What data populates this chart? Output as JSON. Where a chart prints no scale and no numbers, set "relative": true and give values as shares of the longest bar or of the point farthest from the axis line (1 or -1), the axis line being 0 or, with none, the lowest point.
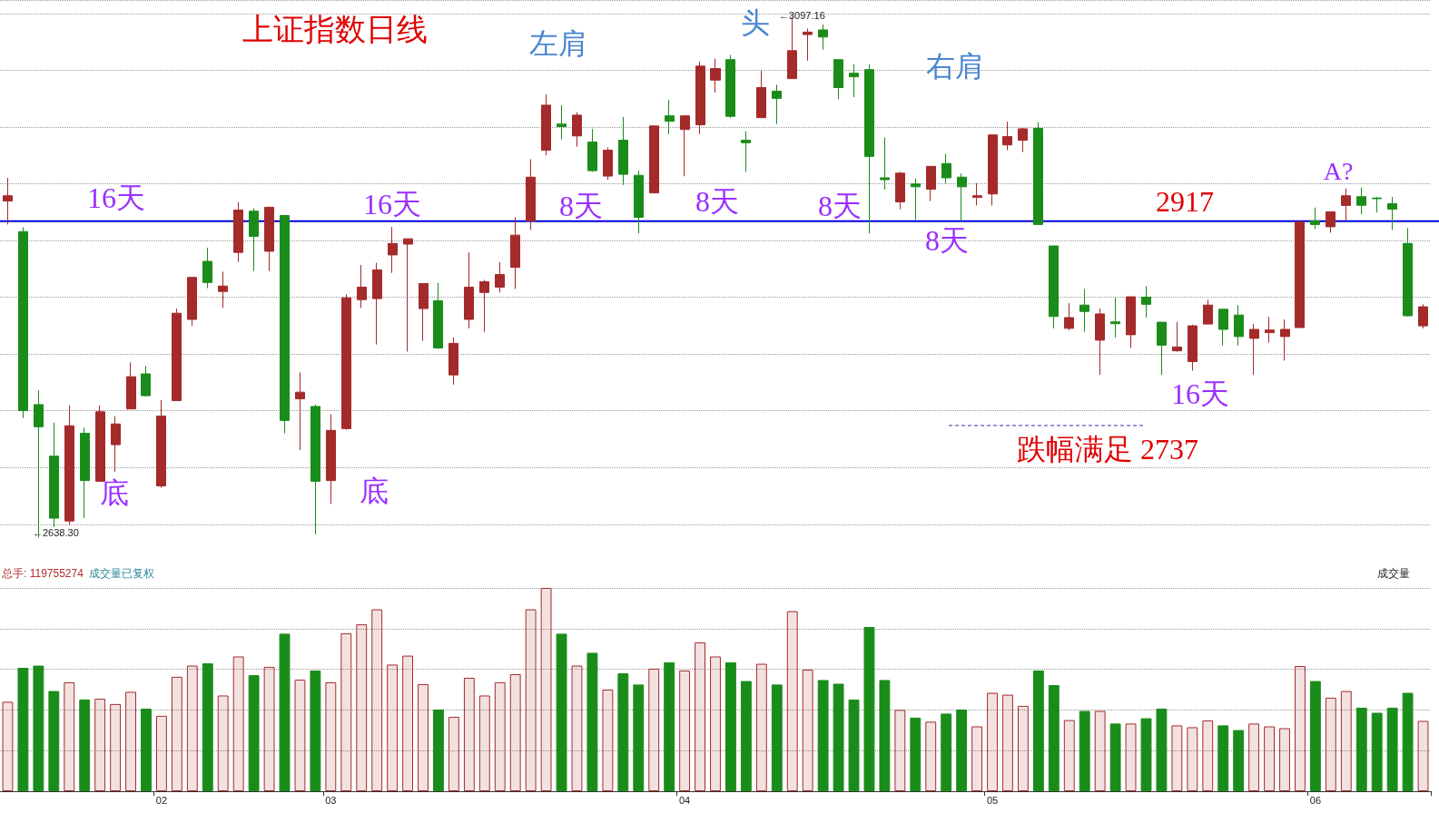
{
  "chart_data": [
    {
      "type": "candlestick",
      "title": "上证指数日线",
      "categories": [
        null,
        null,
        null,
        null,
        null,
        null,
        null,
        null,
        null,
        null,
        "02",
        null,
        null,
        null,
        null,
        null,
        null,
        null,
        null,
        null,
        null,
        "03",
        null,
        null,
        null,
        null,
        null,
        null,
        null,
        null,
        null,
        null,
        null,
        null,
        null,
        null,
        null,
        null,
        null,
        null,
        null,
        null,
        null,
        null,
        "04",
        null,
        null,
        null,
        null,
        null,
        null,
        null,
        null,
        null,
        null,
        null,
        null,
        null,
        null,
        null,
        null,
        null,
        null,
        null,
        "05",
        null,
        null,
        null,
        null,
        null,
        null,
        null,
        null,
        null,
        null,
        null,
        null,
        null,
        null,
        null,
        null,
        null,
        null,
        null,
        null,
        "06",
        null,
        null,
        null,
        null,
        null,
        null,
        null
      ],
      "ohlc": [
        [
          2934.7,
          2955.2,
          2914.1,
          2939.4
        ],
        [
          2907.8,
          2911.6,
          2743.7,
          2750.1
        ],
        [
          2755.4,
          2768.0,
          2638.3,
          2735.9
        ],
        [
          2710.0,
          2739.6,
          2647.5,
          2655.4
        ],
        [
          2652.9,
          2754.8,
          2649.1,
          2736.8
        ],
        [
          2730.2,
          2735.2,
          2655.4,
          2688.5
        ],
        [
          2687.9,
          2754.8,
          2687.9,
          2749.1
        ],
        [
          2720.1,
          2745.3,
          2696.4,
          2738.4
        ],
        [
          2751.6,
          2792.6,
          2751.6,
          2780.0
        ],
        [
          2782.5,
          2789.5,
          2762.7,
          2763.3
        ],
        [
          2683.8,
          2759.5,
          2682.2,
          2745.3
        ],
        [
          2758.9,
          2840.0,
          2758.9,
          2835.9
        ],
        [
          2830.5,
          2867.5,
          2824.8,
          2867.5
        ],
        [
          2881.6,
          2893.6,
          2858.0,
          2863.0
        ],
        [
          2855.1,
          2872.5,
          2840.6,
          2859.9
        ],
        [
          2889.5,
          2933.7,
          2881.0,
          2926.8
        ],
        [
          2925.8,
          2928.3,
          2873.1,
          2903.7
        ],
        [
          2890.5,
          2929.9,
          2873.1,
          2929.3
        ],
        [
          2922.0,
          2922.0,
          2730.2,
          2741.5
        ],
        [
          2760.5,
          2783.8,
          2715.3,
          2766.4
        ],
        [
          2753.8,
          2755.4,
          2641.0,
          2687.9
        ],
        [
          2688.5,
          2746.9,
          2668.0,
          2732.7
        ],
        [
          2734.3,
          2852.6,
          2733.3,
          2849.5
        ],
        [
          2847.9,
          2878.5,
          2840.6,
          2858.9
        ],
        [
          2848.8,
          2880.4,
          2808.4,
          2874.1
        ],
        [
          2887.3,
          2911.9,
          2871.5,
          2897.4
        ],
        [
          2896.8,
          2901.5,
          2802.1,
          2901.5
        ],
        [
          2840.0,
          2862.1,
          2811.6,
          2862.1
        ],
        [
          2846.9,
          2862.7,
          2804.6,
          2805.3
        ],
        [
          2781.6,
          2814.7,
          2773.1,
          2809.4
        ],
        [
          2830.5,
          2889.5,
          2822.6,
          2858.9
        ],
        [
          2854.2,
          2865.3,
          2819.5,
          2863.7
        ],
        [
          2858.9,
          2881.0,
          2854.2,
          2870.0
        ],
        [
          2876.3,
          2920.5,
          2857.3,
          2904.7
        ],
        [
          2917.3,
          2971.6,
          2909.4,
          2955.8
        ],
        [
          2979.5,
          3028.7,
          2975.0,
          3019.2
        ],
        [
          3002.5,
          3019.2,
          2988.9,
          3000.3
        ],
        [
          2992.1,
          3012.9,
          2982.6,
          3010.4
        ],
        [
          2986.7,
          2998.4,
          2960.5,
          2961.5
        ],
        [
          2956.7,
          2982.0,
          2953.6,
          2979.5
        ],
        [
          2988.3,
          3008.8,
          2948.9,
          2958.3
        ],
        [
          2957.4,
          2961.5,
          2906.2,
          2920.4
        ],
        [
          2941.9,
          3000.9,
          2941.9,
          3000.9
        ],
        [
          3009.8,
          3023.9,
          2993.7,
          3005.0
        ],
        [
          2997.8,
          3009.8,
          2956.7,
          3009.8
        ],
        [
          3001.9,
          3057.7,
          2993.7,
          3053.6
        ],
        [
          3041.3,
          3060.2,
          3030.3,
          3051.4
        ],
        [
          3059.3,
          3063.4,
          3007.9,
          3009.4
        ],
        [
          2988.3,
          2996.2,
          2960.5,
          2986.1
        ],
        [
          3008.2,
          3049.8,
          3008.2,
          3034.7
        ],
        [
          3031.5,
          3037.2,
          3002.5,
          3025.2
        ],
        [
          3042.6,
          3097.16,
          3042.6,
          3067.2
        ],
        [
          3081.4,
          3086.7,
          3058.4,
          3083.6
        ],
        [
          3085.5,
          3090.2,
          3068.1,
          3079.2
        ],
        [
          3059.3,
          3059.3,
          3024.6,
          3034.7
        ],
        [
          3047.3,
          3055.2,
          3026.2,
          3044.2
        ],
        [
          3050.5,
          3055.2,
          2906.2,
          2974.1
        ],
        [
          2955.2,
          2990.8,
          2944.8,
          2953.6
        ],
        [
          2934.0,
          2960.5,
          2927.4,
          2959.3
        ],
        [
          2949.8,
          2954.5,
          2918.2,
          2947.3
        ],
        [
          2945.1,
          2965.3,
          2934.7,
          2965.3
        ],
        [
          2967.8,
          2976.3,
          2950.4,
          2955.2
        ],
        [
          2955.8,
          2959.0,
          2917.3,
          2947.3
        ],
        [
          2937.9,
          2950.4,
          2930.9,
          2939.4
        ],
        [
          2941.0,
          2993.0,
          2930.9,
          2993.0
        ],
        [
          2984.2,
          3004.7,
          2979.5,
          2991.5
        ],
        [
          2988.3,
          2999.3,
          2977.9,
          2998.4
        ],
        [
          2998.7,
          3004.1,
          2914.1,
          2914.1
        ],
        [
          2895.2,
          2895.2,
          2822.6,
          2833.0
        ],
        [
          2822.6,
          2844.7,
          2821.0,
          2832.1
        ],
        [
          2843.1,
          2857.3,
          2819.5,
          2837.5
        ],
        [
          2812.2,
          2840.0,
          2781.6,
          2835.3
        ],
        [
          2828.3,
          2849.5,
          2814.7,
          2826.7
        ],
        [
          2817.0,
          2850.4,
          2805.3,
          2850.4
        ],
        [
          2850.1,
          2859.9,
          2832.1,
          2843.8
        ],
        [
          2828.0,
          2828.0,
          2781.6,
          2807.8
        ],
        [
          2802.8,
          2828.3,
          2802.1,
          2806.2
        ],
        [
          2793.3,
          2825.8,
          2785.4,
          2824.8
        ],
        [
          2826.4,
          2847.9,
          2826.4,
          2843.1
        ],
        [
          2839.4,
          2839.4,
          2807.5,
          2821.7
        ],
        [
          2834.3,
          2843.1,
          2807.5,
          2815.4
        ],
        [
          2813.8,
          2826.4,
          2781.6,
          2821.7
        ],
        [
          2818.8,
          2832.7,
          2810.0,
          2821.1
        ],
        [
          2815.4,
          2830.5,
          2794.2,
          2821.7
        ],
        [
          2823.3,
          2917.3,
          2823.3,
          2916.3
        ],
        [
          2917.3,
          2929.0,
          2910.0,
          2914.1
        ],
        [
          2912.1,
          2925.2,
          2906.9,
          2925.2
        ],
        [
          2930.9,
          2945.7,
          2917.3,
          2939.4
        ],
        [
          2938.6,
          2946.6,
          2923.0,
          2931.0
        ],
        [
          2937.4,
          2938.4,
          2924.6,
          2936.8
        ],
        [
          2932.4,
          2938.4,
          2909.4,
          2927.7
        ],
        [
          2897.4,
          2911.0,
          2833.0,
          2833.7
        ],
        [
          2824.8,
          2843.8,
          2822.6,
          2841.6
        ]
      ],
      "colors": [
        "#a52a2a",
        "#1a8c1a",
        "#1a8c1a",
        "#1a8c1a",
        "#a52a2a",
        "#1a8c1a",
        "#a52a2a",
        "#a52a2a",
        "#a52a2a",
        "#1a8c1a",
        "#a52a2a",
        "#a52a2a",
        "#a52a2a",
        "#1a8c1a",
        "#a52a2a",
        "#a52a2a",
        "#1a8c1a",
        "#a52a2a",
        "#1a8c1a",
        "#a52a2a",
        "#1a8c1a",
        "#a52a2a",
        "#a52a2a",
        "#a52a2a",
        "#a52a2a",
        "#a52a2a",
        "#a52a2a",
        "#a52a2a",
        "#1a8c1a",
        "#a52a2a",
        "#a52a2a",
        "#a52a2a",
        "#a52a2a",
        "#a52a2a",
        "#a52a2a",
        "#a52a2a",
        "#1a8c1a",
        "#a52a2a",
        "#1a8c1a",
        "#a52a2a",
        "#1a8c1a",
        "#1a8c1a",
        "#a52a2a",
        "#1a8c1a",
        "#a52a2a",
        "#a52a2a",
        "#a52a2a",
        "#1a8c1a",
        "#1a8c1a",
        "#a52a2a",
        "#1a8c1a",
        "#a52a2a",
        "#a52a2a",
        "#1a8c1a",
        "#1a8c1a",
        "#1a8c1a",
        "#1a8c1a",
        "#1a8c1a",
        "#a52a2a",
        "#1a8c1a",
        "#a52a2a",
        "#1a8c1a",
        "#1a8c1a",
        "#a52a2a",
        "#a52a2a",
        "#a52a2a",
        "#a52a2a",
        "#1a8c1a",
        "#1a8c1a",
        "#a52a2a",
        "#1a8c1a",
        "#a52a2a",
        "#1a8c1a",
        "#a52a2a",
        "#1a8c1a",
        "#1a8c1a",
        "#a52a2a",
        "#a52a2a",
        "#a52a2a",
        "#1a8c1a",
        "#1a8c1a",
        "#a52a2a",
        "#a52a2a",
        "#a52a2a",
        "#a52a2a",
        "#1a8c1a",
        "#a52a2a",
        "#a52a2a",
        "#1a8c1a",
        "#1a8c1a",
        "#1a8c1a",
        "#1a8c1a",
        "#a52a2a"
      ],
      "grid": "y",
      "tick_labels": false,
      "ref_lines": [
        {
          "axis": "y",
          "value": 2917,
          "label": "2917",
          "color": "#0000dd",
          "line_style": "solid"
        },
        {
          "axis": "y",
          "value": 2737,
          "label": "跌幅满足 2737",
          "color": "#3333aa",
          "line_style": "dashed"
        }
      ],
      "annotations": [
        "左肩",
        "头",
        "右肩",
        "16天",
        "16天",
        "8天",
        "8天",
        "8天",
        "8天",
        "底",
        "底",
        "16天",
        "A?",
        "←3097.16",
        "←2638.30"
      ]
    },
    {
      "type": "bar",
      "relative": true,
      "categories": [
        null,
        null,
        null,
        null,
        null,
        null,
        null,
        null,
        null,
        null,
        "02",
        null,
        null,
        null,
        null,
        null,
        null,
        null,
        null,
        null,
        null,
        "03",
        null,
        null,
        null,
        null,
        null,
        null,
        null,
        null,
        null,
        null,
        null,
        null,
        null,
        null,
        null,
        null,
        null,
        null,
        null,
        null,
        null,
        null,
        "04",
        null,
        null,
        null,
        null,
        null,
        null,
        null,
        null,
        null,
        null,
        null,
        null,
        null,
        null,
        null,
        null,
        null,
        null,
        null,
        "05",
        null,
        null,
        null,
        null,
        null,
        null,
        null,
        null,
        null,
        null,
        null,
        null,
        null,
        null,
        null,
        null,
        null,
        null,
        null,
        null,
        "06",
        null,
        null,
        null,
        null,
        null,
        null,
        null
      ],
      "values": [
        0.44,
        0.607,
        0.618,
        0.493,
        0.536,
        0.451,
        0.455,
        0.429,
        0.489,
        0.406,
        0.371,
        0.563,
        0.618,
        0.629,
        0.471,
        0.663,
        0.571,
        0.612,
        0.775,
        0.549,
        0.594,
        0.536,
        0.777,
        0.821,
        0.895,
        0.623,
        0.667,
        0.527,
        0.402,
        0.366,
        0.558,
        0.471,
        0.536,
        0.576,
        0.895,
        1,
        0.775,
        0.618,
        0.681,
        0.5,
        0.58,
        0.525,
        0.603,
        0.634,
        0.594,
        0.732,
        0.663,
        0.634,
        0.542,
        0.627,
        0.525,
        0.886,
        0.598,
        0.547,
        0.529,
        0.451,
        0.808,
        0.547,
        0.4,
        0.362,
        0.342,
        0.382,
        0.402,
        0.319,
        0.484,
        0.475,
        0.42,
        0.594,
        0.522,
        0.35,
        0.395,
        0.395,
        0.333,
        0.333,
        0.359,
        0.406,
        0.324,
        0.315,
        0.348,
        0.324,
        0.301,
        0.333,
        0.319,
        0.31,
        0.616,
        0.542,
        0.46,
        0.493,
        0.411,
        0.386,
        0.411,
        0.484,
        0.346
      ],
      "colors": [
        "#a52a2a",
        "#1a8c1a",
        "#1a8c1a",
        "#1a8c1a",
        "#a52a2a",
        "#1a8c1a",
        "#a52a2a",
        "#a52a2a",
        "#a52a2a",
        "#1a8c1a",
        "#a52a2a",
        "#a52a2a",
        "#a52a2a",
        "#1a8c1a",
        "#a52a2a",
        "#a52a2a",
        "#1a8c1a",
        "#a52a2a",
        "#1a8c1a",
        "#a52a2a",
        "#1a8c1a",
        "#a52a2a",
        "#a52a2a",
        "#a52a2a",
        "#a52a2a",
        "#a52a2a",
        "#a52a2a",
        "#a52a2a",
        "#1a8c1a",
        "#a52a2a",
        "#a52a2a",
        "#a52a2a",
        "#a52a2a",
        "#a52a2a",
        "#a52a2a",
        "#a52a2a",
        "#1a8c1a",
        "#a52a2a",
        "#1a8c1a",
        "#a52a2a",
        "#1a8c1a",
        "#1a8c1a",
        "#a52a2a",
        "#1a8c1a",
        "#a52a2a",
        "#a52a2a",
        "#a52a2a",
        "#1a8c1a",
        "#1a8c1a",
        "#a52a2a",
        "#1a8c1a",
        "#a52a2a",
        "#a52a2a",
        "#1a8c1a",
        "#1a8c1a",
        "#1a8c1a",
        "#1a8c1a",
        "#1a8c1a",
        "#a52a2a",
        "#1a8c1a",
        "#a52a2a",
        "#1a8c1a",
        "#1a8c1a",
        "#a52a2a",
        "#a52a2a",
        "#a52a2a",
        "#a52a2a",
        "#1a8c1a",
        "#1a8c1a",
        "#a52a2a",
        "#1a8c1a",
        "#a52a2a",
        "#1a8c1a",
        "#a52a2a",
        "#1a8c1a",
        "#1a8c1a",
        "#a52a2a",
        "#a52a2a",
        "#a52a2a",
        "#1a8c1a",
        "#1a8c1a",
        "#a52a2a",
        "#a52a2a",
        "#a52a2a",
        "#a52a2a",
        "#1a8c1a",
        "#a52a2a",
        "#a52a2a",
        "#1a8c1a",
        "#1a8c1a",
        "#1a8c1a",
        "#1a8c1a",
        "#a52a2a"
      ],
      "grid": "y",
      "tick_labels": "x",
      "annotations": [
        "总手: 119755274",
        "成交量已复权",
        "成交量"
      ]
    }
  ]
}
